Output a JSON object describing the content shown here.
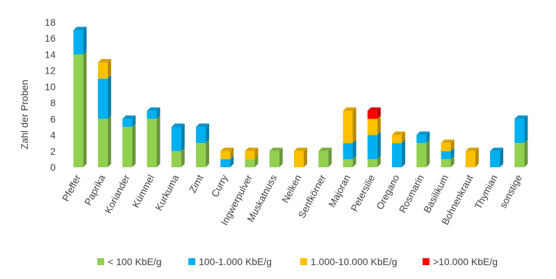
{
  "chart_data": {
    "type": "bar",
    "stacked": true,
    "style": "3d",
    "title": "",
    "xlabel": "",
    "ylabel": "Zahl der Proben",
    "ylim": [
      0,
      18
    ],
    "ytick_step": 2,
    "yticks": [
      "0",
      "2",
      "4",
      "6",
      "8",
      "10",
      "12",
      "14",
      "16",
      "18"
    ],
    "grid": false,
    "legend_position": "bottom",
    "categories": [
      "Pfeffer",
      "Paprika",
      "Koriander",
      "Kümmel",
      "Kurkuma",
      "Zimt",
      "Curry",
      "Ingwerpulver",
      "Muskatnuss",
      "Nelken",
      "Senfkörner",
      "Majoran",
      "Petersilie",
      "Oregano",
      "Rosmarin",
      "Basilikum",
      "Bohnenkraut",
      "Thymian",
      "sonstige"
    ],
    "series": [
      {
        "name": "< 100 KbE/g",
        "color": "#92d050",
        "values": [
          14,
          6,
          5,
          6,
          2,
          3,
          0,
          1,
          2,
          0,
          2,
          1,
          1,
          0,
          3,
          1,
          0,
          0,
          3
        ]
      },
      {
        "name": "100-1.000 KbE/g",
        "color": "#00b0f0",
        "values": [
          3,
          5,
          1,
          1,
          3,
          2,
          1,
          0,
          0,
          0,
          0,
          2,
          3,
          3,
          1,
          1,
          0,
          2,
          3
        ]
      },
      {
        "name": "1.000-10.000 KbE/g",
        "color": "#ffc000",
        "values": [
          0,
          2,
          0,
          0,
          0,
          0,
          1,
          1,
          0,
          2,
          0,
          4,
          2,
          1,
          0,
          1,
          2,
          0,
          0
        ]
      },
      {
        "name": ">10.000 KbE/g",
        "color": "#ff0000",
        "values": [
          0,
          0,
          0,
          0,
          0,
          0,
          0,
          0,
          0,
          0,
          0,
          0,
          1,
          0,
          0,
          0,
          0,
          0,
          0
        ]
      }
    ]
  }
}
